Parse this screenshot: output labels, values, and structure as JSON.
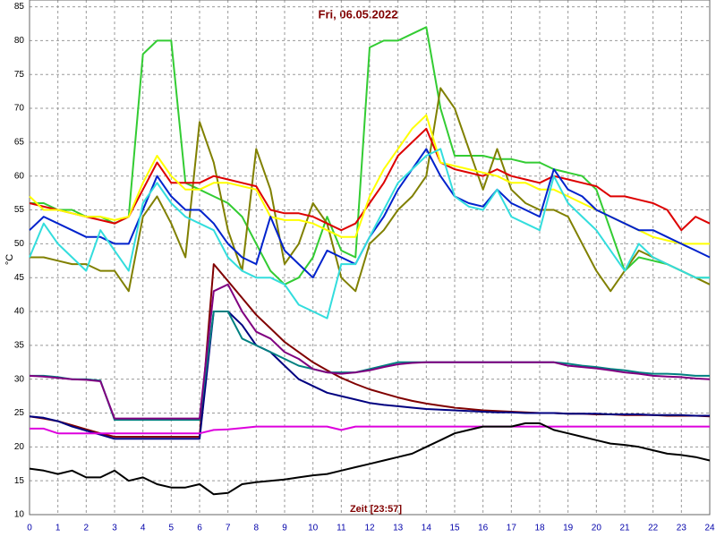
{
  "chart_data": {
    "type": "line",
    "title": "Fri, 06.05.2022",
    "xlabel": "Zeit [23:57]",
    "ylabel": "°C",
    "xlim": [
      0,
      24
    ],
    "xticks": [
      0,
      1,
      2,
      3,
      4,
      5,
      6,
      7,
      8,
      9,
      10,
      11,
      12,
      13,
      14,
      15,
      16,
      17,
      18,
      19,
      20,
      21,
      22,
      23,
      24
    ],
    "ylim": [
      10,
      86
    ],
    "yticks": [
      10,
      15,
      20,
      25,
      30,
      35,
      40,
      45,
      50,
      55,
      60,
      65,
      70,
      75,
      80,
      85
    ],
    "grid": true,
    "x": [
      0,
      0.5,
      1,
      1.5,
      2,
      2.5,
      3,
      3.5,
      4,
      4.5,
      5,
      5.5,
      6,
      6.5,
      7,
      7.5,
      8,
      8.5,
      9,
      9.5,
      10,
      10.5,
      11,
      11.5,
      12,
      12.5,
      13,
      13.5,
      14,
      14.5,
      15,
      15.5,
      16,
      16.5,
      17,
      17.5,
      18,
      18.5,
      19,
      19.5,
      20,
      20.5,
      21,
      21.5,
      22,
      22.5,
      23,
      23.5,
      24
    ],
    "series": [
      {
        "color": "#33cc33",
        "values": [
          56,
          56,
          55,
          55,
          54,
          54,
          53,
          54,
          78,
          80,
          80,
          59,
          58,
          57,
          56,
          54,
          50,
          46,
          44,
          45,
          48,
          54,
          49,
          48,
          79,
          80,
          80,
          81,
          82,
          70,
          63,
          63,
          63,
          62.5,
          62.5,
          62,
          62,
          61,
          60.5,
          60,
          58,
          52,
          46,
          48,
          47.5,
          47,
          46,
          45,
          45
        ]
      },
      {
        "color": "#808000",
        "values": [
          48,
          48,
          47.5,
          47,
          47,
          46,
          46,
          43,
          54,
          57,
          53,
          48,
          68,
          62,
          52,
          46,
          64,
          58,
          47,
          50,
          56,
          53,
          45,
          43,
          50,
          52,
          55,
          57,
          60,
          73,
          70,
          64,
          58,
          64,
          58,
          56,
          55,
          55,
          54,
          50,
          46,
          43,
          46,
          49,
          48,
          47,
          46,
          45,
          44
        ]
      },
      {
        "color": "#dd0000",
        "values": [
          56,
          55.5,
          55,
          54.5,
          54,
          53.5,
          53,
          54,
          58,
          62,
          59,
          59,
          59,
          60,
          59.5,
          59,
          58.5,
          55,
          54.5,
          54.5,
          54,
          53,
          52,
          53,
          56,
          59,
          63,
          65,
          67,
          62,
          61,
          60.5,
          60,
          61,
          60,
          59.5,
          59,
          60,
          59.5,
          59,
          58.5,
          57,
          57,
          56.5,
          56,
          55,
          52,
          54,
          53
        ]
      },
      {
        "color": "#ffff00",
        "values": [
          57,
          55,
          55,
          54.5,
          54,
          54,
          53.5,
          54,
          59,
          63,
          60,
          58,
          58,
          59,
          59,
          58.5,
          58,
          54,
          53.5,
          53.5,
          53,
          52,
          51,
          51,
          57,
          61,
          64,
          67,
          69,
          62,
          61.5,
          61,
          60.5,
          60,
          59,
          59,
          58,
          58,
          57,
          56,
          55,
          54,
          53,
          52,
          51,
          50.5,
          50,
          50,
          50
        ]
      },
      {
        "color": "#0022cc",
        "values": [
          52,
          54,
          53,
          52,
          51,
          51,
          50,
          50,
          55,
          60,
          57,
          55,
          55,
          53,
          50,
          48,
          47,
          54,
          49,
          47,
          45,
          49,
          48,
          47,
          51,
          54,
          58,
          61,
          64,
          60,
          57,
          56,
          55.5,
          58,
          56,
          55,
          54,
          61,
          58,
          57,
          55,
          54,
          53,
          52,
          52,
          51,
          50,
          49,
          48
        ]
      },
      {
        "color": "#33dddd",
        "values": [
          48,
          53,
          50,
          48,
          46,
          52,
          49,
          46,
          56,
          59,
          56,
          54,
          53,
          52,
          48,
          46,
          45,
          45,
          44,
          41,
          40,
          39,
          47,
          47,
          51,
          55,
          59,
          61,
          63,
          64,
          57,
          55.5,
          55,
          58,
          54,
          53,
          52,
          60,
          56,
          54,
          52,
          49,
          46,
          50,
          48,
          47,
          46,
          45,
          45
        ]
      },
      {
        "color": "#800000",
        "values": [
          24.5,
          24.2,
          23.8,
          23.2,
          22.6,
          22,
          21.5,
          21.5,
          21.5,
          21.5,
          21.5,
          21.5,
          21.5,
          47,
          44.5,
          42,
          39.5,
          37.5,
          35.5,
          34,
          32.5,
          31.3,
          30.2,
          29.3,
          28.5,
          27.9,
          27.3,
          26.8,
          26.4,
          26.1,
          25.8,
          25.6,
          25.4,
          25.3,
          25.2,
          25.1,
          25,
          25,
          24.9,
          24.9,
          24.8,
          24.8,
          24.7,
          24.7,
          24.7,
          24.6,
          24.6,
          24.6,
          24.5
        ]
      },
      {
        "color": "#000080",
        "values": [
          24.5,
          24.3,
          23.8,
          23,
          22.4,
          21.8,
          21.2,
          21.2,
          21.2,
          21.2,
          21.2,
          21.2,
          21.2,
          40,
          40,
          38,
          35,
          34,
          32,
          30,
          29,
          28,
          27.5,
          27,
          26.5,
          26.2,
          26,
          25.8,
          25.6,
          25.5,
          25.4,
          25.3,
          25.2,
          25.1,
          25.1,
          25,
          25,
          25,
          24.9,
          24.9,
          24.9,
          24.8,
          24.8,
          24.8,
          24.7,
          24.7,
          24.7,
          24.6,
          24.6
        ]
      },
      {
        "color": "#008080",
        "values": [
          30.5,
          30.5,
          30.3,
          30,
          30,
          29.8,
          24,
          24,
          24,
          24,
          24,
          24,
          24,
          40,
          40,
          36,
          35,
          34,
          33,
          32,
          31.5,
          31,
          31,
          31,
          31.5,
          32,
          32.5,
          32.5,
          32.5,
          32.5,
          32.5,
          32.5,
          32.5,
          32.5,
          32.5,
          32.5,
          32.5,
          32.5,
          32.3,
          32,
          31.8,
          31.5,
          31.3,
          31,
          30.8,
          30.8,
          30.7,
          30.5,
          30.5
        ]
      },
      {
        "color": "#800080",
        "values": [
          30.5,
          30.4,
          30.2,
          30,
          29.9,
          29.7,
          24.2,
          24.2,
          24.2,
          24.2,
          24.2,
          24.2,
          24.2,
          43,
          44,
          40,
          37,
          36,
          34,
          33,
          31.5,
          31,
          30.8,
          31,
          31.3,
          31.8,
          32.2,
          32.4,
          32.5,
          32.5,
          32.5,
          32.5,
          32.5,
          32.5,
          32.5,
          32.5,
          32.5,
          32.5,
          32,
          31.8,
          31.6,
          31.3,
          31,
          30.8,
          30.5,
          30.4,
          30.3,
          30.1,
          30
        ]
      },
      {
        "color": "#dd00dd",
        "values": [
          22.7,
          22.7,
          22,
          22,
          22,
          22,
          22,
          22,
          22,
          22,
          22,
          22,
          22,
          22.5,
          22.6,
          22.8,
          23,
          23,
          23,
          23,
          23,
          23,
          22.5,
          23,
          23,
          23,
          23,
          23,
          23,
          23,
          23,
          23,
          23,
          23,
          23,
          23,
          23,
          23,
          23,
          23,
          23,
          23,
          23,
          23,
          23,
          23,
          23,
          23,
          23
        ]
      },
      {
        "color": "#000000",
        "values": [
          16.8,
          16.5,
          16,
          16.5,
          15.5,
          15.5,
          16.5,
          15,
          15.5,
          14.5,
          14,
          14,
          14.5,
          13,
          13.2,
          14.5,
          14.8,
          15,
          15.2,
          15.5,
          15.8,
          16,
          16.5,
          17,
          17.5,
          18,
          18.5,
          19,
          20,
          21,
          22,
          22.5,
          23,
          23,
          23,
          23.5,
          23.5,
          22.5,
          22,
          21.5,
          21,
          20.5,
          20.3,
          20,
          19.5,
          19,
          18.8,
          18.5,
          18
        ]
      }
    ]
  }
}
